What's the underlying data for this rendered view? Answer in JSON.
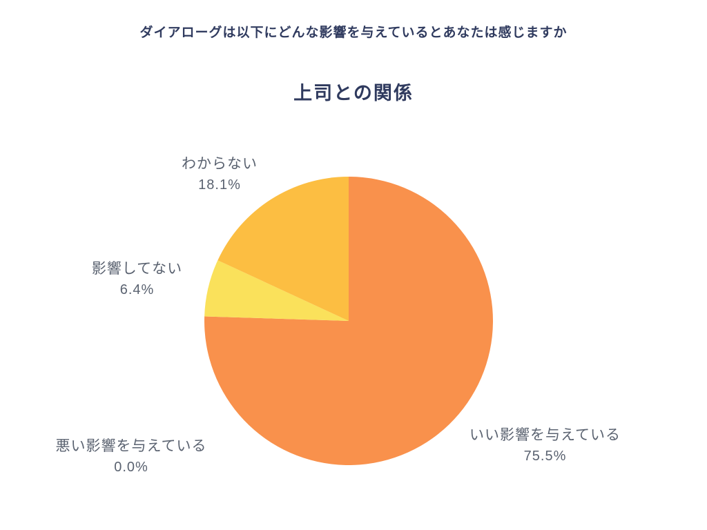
{
  "chart_data": {
    "type": "pie",
    "question": "ダイアローグは以下にどんな影響を与えているとあなたは感じますか",
    "title": "上司との関係",
    "unit": "%",
    "start_angle": "top",
    "direction": "clockwise",
    "legend": "none",
    "background": "#ffffff",
    "question_color": "#303b5f",
    "title_color": "#2f3a5e",
    "label_color": "#5a6270",
    "slices": [
      {
        "label": "いい影響を与えている",
        "value": 75.5,
        "pct_label": "75.5%",
        "color": "#f9914c"
      },
      {
        "label": "影響してない",
        "value": 6.4,
        "pct_label": "6.4%",
        "color": "#fae15b"
      },
      {
        "label": "わからない",
        "value": 18.1,
        "pct_label": "18.1%",
        "color": "#fcbe42"
      },
      {
        "label": "悪い影響を与えている",
        "value": 0.0,
        "pct_label": "0.0%",
        "color": "#e8604c"
      }
    ]
  }
}
